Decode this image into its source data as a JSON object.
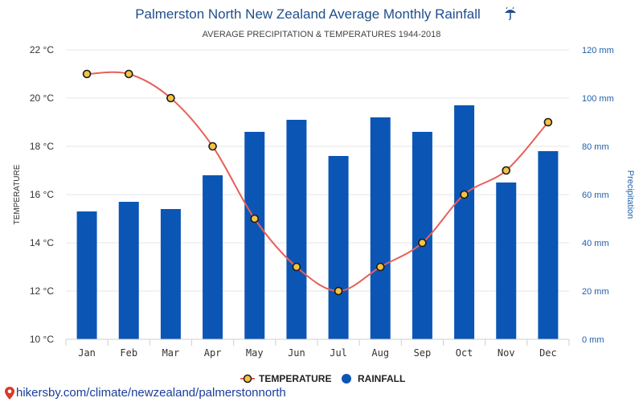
{
  "header": {
    "title": "Palmerston North New Zealand Average Monthly Rainfall",
    "title_icon": "umbrella-rain-icon",
    "subtitle": "AVERAGE PRECIPITATION & TEMPERATURES 1944-2018"
  },
  "legend": {
    "temperature": "TEMPERATURE",
    "rainfall": "RAINFALL"
  },
  "footer": {
    "source_url": "hikersby.com/climate/newzealand/palmerstonnorth",
    "source_icon": "map-pin-icon"
  },
  "colors": {
    "bar": "#0b56b5",
    "line": "#e8605a",
    "marker_fill": "#f5c242",
    "marker_stroke": "#1a1a1a",
    "title": "#1f4e8c",
    "right_axis": "#1f5fa8",
    "grid": "#e6e6e6"
  },
  "chart_data": {
    "type": "bar",
    "categories": [
      "Jan",
      "Feb",
      "Mar",
      "Apr",
      "May",
      "Jun",
      "Jul",
      "Aug",
      "Sep",
      "Oct",
      "Nov",
      "Dec"
    ],
    "series": [
      {
        "name": "RAINFALL",
        "type": "bar",
        "axis": "right",
        "unit": "mm",
        "values": [
          53,
          57,
          54,
          68,
          86,
          91,
          76,
          92,
          86,
          97,
          65,
          78
        ]
      },
      {
        "name": "TEMPERATURE",
        "type": "line",
        "axis": "left",
        "unit": "°C",
        "values": [
          21,
          21,
          20,
          18,
          15,
          13,
          12,
          13,
          14,
          16,
          17,
          19
        ]
      }
    ],
    "left_axis": {
      "label": "TEMPERATURE",
      "ylim": [
        10,
        22
      ],
      "ticks": [
        10,
        12,
        14,
        16,
        18,
        20,
        22
      ],
      "tick_labels": [
        "10 °C",
        "12 °C",
        "14 °C",
        "16 °C",
        "18 °C",
        "20 °C",
        "22 °C"
      ]
    },
    "right_axis": {
      "label": "Precipitation",
      "ylim": [
        0,
        120
      ],
      "ticks": [
        0,
        20,
        40,
        60,
        80,
        100,
        120
      ],
      "tick_labels": [
        "0 mm",
        "20 mm",
        "40 mm",
        "60 mm",
        "80 mm",
        "100 mm",
        "120 mm"
      ]
    },
    "grid": true,
    "legend_position": "bottom"
  }
}
